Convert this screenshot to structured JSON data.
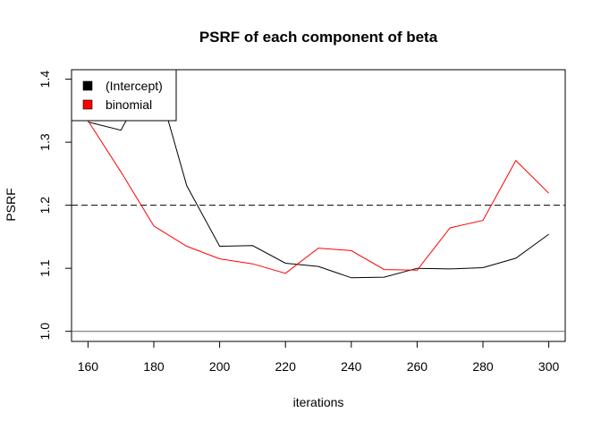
{
  "chart_data": {
    "type": "line",
    "title": "PSRF of each component of beta",
    "xlabel": "iterations",
    "ylabel": "PSRF",
    "x": [
      160,
      170,
      180,
      190,
      200,
      210,
      220,
      230,
      240,
      250,
      260,
      270,
      280,
      290,
      300
    ],
    "xlim": [
      155,
      305
    ],
    "ylim": [
      0.984,
      1.415
    ],
    "xticks": [
      "160",
      "180",
      "200",
      "220",
      "240",
      "260",
      "280",
      "300"
    ],
    "yticks": [
      "1.0",
      "1.1",
      "1.2",
      "1.3",
      "1.4"
    ],
    "series": [
      {
        "name": "(Intercept)",
        "color": "#000000",
        "values": [
          1.332,
          1.319,
          1.415,
          1.231,
          1.135,
          1.136,
          1.108,
          1.103,
          1.085,
          1.086,
          1.1,
          1.099,
          1.101,
          1.116,
          1.154
        ]
      },
      {
        "name": "binomial",
        "color": "#ff0000",
        "values": [
          1.334,
          1.253,
          1.167,
          1.135,
          1.115,
          1.107,
          1.092,
          1.132,
          1.128,
          1.098,
          1.097,
          1.164,
          1.176,
          1.271,
          1.219
        ]
      }
    ],
    "reference_lines": [
      {
        "y": 1.2,
        "style": "dashed",
        "color": "#000000"
      },
      {
        "y": 1.0,
        "style": "solid",
        "color": "#666666"
      }
    ],
    "legend_position": "top-left",
    "grid": false
  }
}
